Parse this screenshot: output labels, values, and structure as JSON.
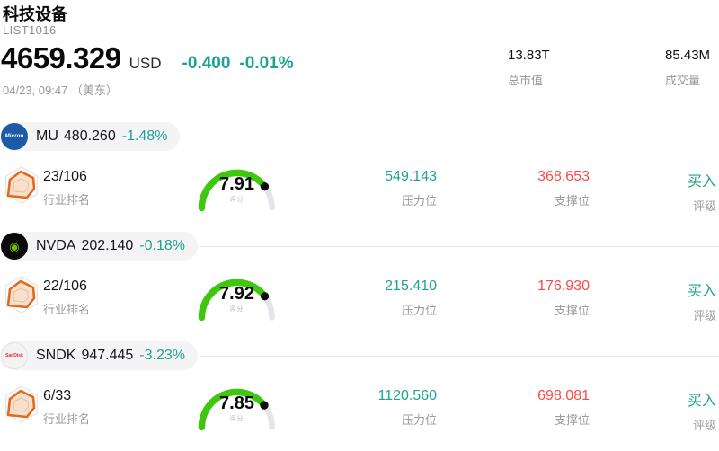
{
  "colors": {
    "teal": "#1fa38f",
    "red": "#f94b45",
    "gauge_green": "#3ec70d",
    "gauge_track": "#e4e4e9",
    "gauge_dot": "#0d0d0d",
    "pill_bg": "#f4f4f6",
    "line": "#e5e5ec",
    "badge_orange": "#e06a1f"
  },
  "header": {
    "title": "科技设备",
    "list_id": "LIST1016",
    "price": "4659.329",
    "currency": "USD",
    "change": "-0.400",
    "change_pct": "-0.01%",
    "timestamp": "04/23, 09:47 （美东）",
    "market_cap": {
      "value": "13.83T",
      "label": "总市值"
    },
    "volume": {
      "value": "85.43M",
      "label": "成交量"
    }
  },
  "labels": {
    "rank": "行业排名",
    "score": "评分",
    "resistance": "压力位",
    "support": "支撑位",
    "rating": "评级"
  },
  "stocks": [
    {
      "ticker": "MU",
      "price": "480.260",
      "change_pct": "-1.48%",
      "rank": "23/106",
      "score": "7.91",
      "resistance": "549.143",
      "support": "368.653",
      "rating": "买入",
      "logo": {
        "text": "Micron",
        "bg": "#1d5aa7",
        "fg": "#ffffff"
      }
    },
    {
      "ticker": "NVDA",
      "price": "202.140",
      "change_pct": "-0.18%",
      "rank": "22/106",
      "score": "7.92",
      "resistance": "215.410",
      "support": "176.930",
      "rating": "买入",
      "logo": {
        "text": "◉",
        "bg": "#0a0a0a",
        "fg": "#76b900"
      }
    },
    {
      "ticker": "SNDK",
      "price": "947.445",
      "change_pct": "-3.23%",
      "rank": "6/33",
      "score": "7.85",
      "resistance": "1120.560",
      "support": "698.081",
      "rating": "买入",
      "logo": {
        "text": "SanDisk",
        "bg": "#f3f3f4",
        "fg": "#e8232f",
        "border": "#e3e3e3"
      }
    }
  ]
}
